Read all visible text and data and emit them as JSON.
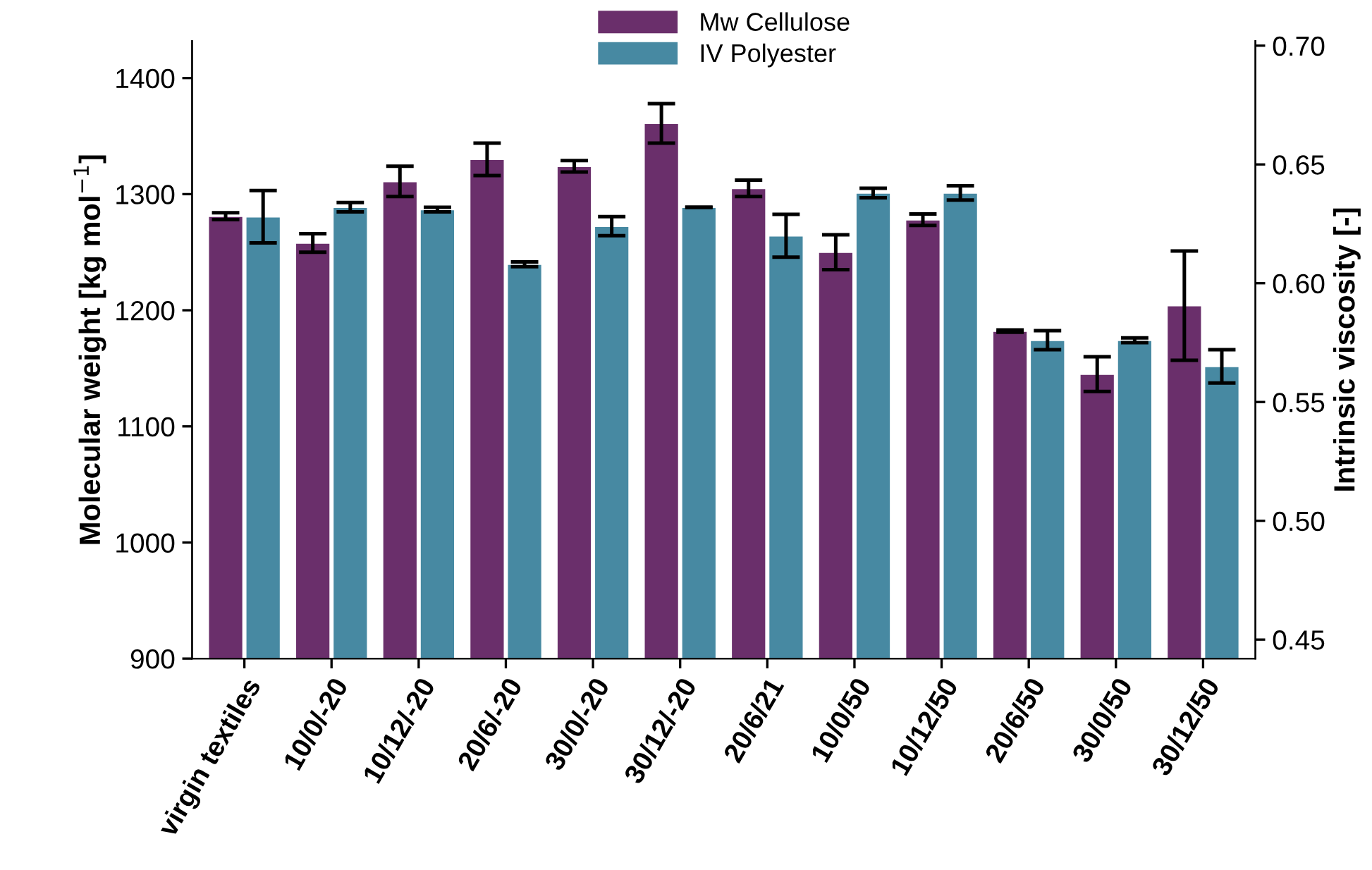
{
  "chart_data": {
    "type": "bar",
    "ylabel": "Molecular weight [kg mol$^{−1}$]",
    "y2label": "Intrinsic viscosity [-]",
    "categories": [
      "virgin textiles",
      "10/0/-20",
      "10/12/-20",
      "20/6/-20",
      "30/0/-20",
      "30/12/-20",
      "20/6/21",
      "10/0/50",
      "10/12/50",
      "20/6/50",
      "30/0/50",
      "30/12/50"
    ],
    "series": [
      {
        "name": "Mw Cellulose",
        "color": "#6a2f6b",
        "values": [
          1281,
          1258,
          1311,
          1330,
          1324,
          1361,
          1305,
          1250,
          1278,
          1182,
          1145,
          1204
        ],
        "errors": [
          3,
          8,
          13,
          14,
          5,
          17,
          7,
          15,
          5,
          1,
          15,
          47
        ]
      },
      {
        "name": "IV Polyester",
        "color": "#4789a2",
        "axis": "y2",
        "values": [
          0.628,
          0.632,
          0.631,
          0.608,
          0.624,
          0.632,
          0.62,
          0.638,
          0.638,
          0.576,
          0.576,
          0.565
        ],
        "errors": [
          0.011,
          0.002,
          0.001,
          0.001,
          0.004,
          0,
          0.009,
          0.002,
          0.003,
          0.004,
          0.001,
          0.007
        ]
      }
    ],
    "ylim": [
      900,
      1432
    ],
    "yticks": [
      900,
      1000,
      1100,
      1200,
      1300,
      1400
    ],
    "y2lim": [
      0.442,
      0.702
    ],
    "y2ticks": [
      {
        "value": 0.45,
        "label": "0.45"
      },
      {
        "value": 0.5,
        "label": "0.50"
      },
      {
        "value": 0.55,
        "label": "0.55"
      },
      {
        "value": 0.6,
        "label": "0.60"
      },
      {
        "value": 0.65,
        "label": "0.65"
      },
      {
        "value": 0.7,
        "label": "0.70"
      }
    ],
    "legend": "top",
    "grid": false
  }
}
